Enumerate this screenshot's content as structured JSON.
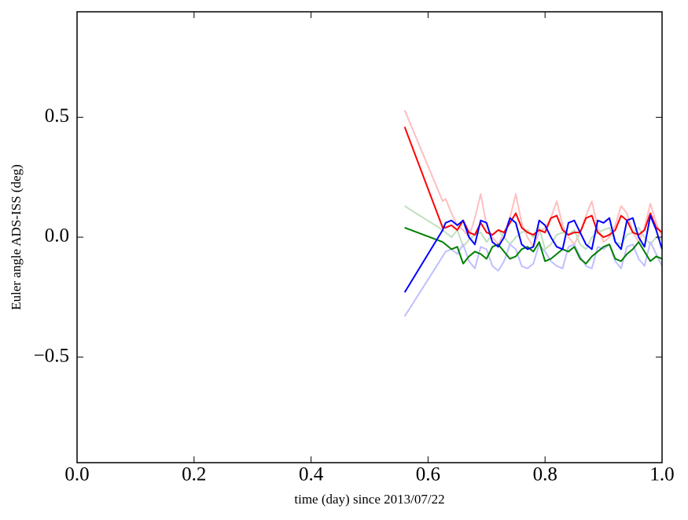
{
  "chart_data": {
    "type": "line",
    "xlabel": "time (day) since 2013/07/22",
    "ylabel": "Euler angle ADS-ISS (deg)",
    "xlim": [
      0,
      1
    ],
    "ylim": [
      -0.94,
      0.94
    ],
    "xticks": [
      {
        "value": 0,
        "label": "0.0"
      },
      {
        "value": 0.2,
        "label": "0.2"
      },
      {
        "value": 0.4,
        "label": "0.4"
      },
      {
        "value": 0.6,
        "label": "0.6"
      },
      {
        "value": 0.8,
        "label": "0.8"
      },
      {
        "value": 1,
        "label": "1.0"
      }
    ],
    "yticks": [
      {
        "value": -0.5,
        "label": "−0.5"
      },
      {
        "value": 0,
        "label": "0.0"
      },
      0.5
    ],
    "grid": false,
    "x": [
      0.56,
      0.625,
      0.63,
      0.64,
      0.65,
      0.66,
      0.67,
      0.68,
      0.69,
      0.7,
      0.71,
      0.72,
      0.73,
      0.74,
      0.75,
      0.76,
      0.77,
      0.78,
      0.79,
      0.8,
      0.81,
      0.82,
      0.83,
      0.84,
      0.85,
      0.86,
      0.87,
      0.88,
      0.89,
      0.9,
      0.91,
      0.92,
      0.93,
      0.94,
      0.95,
      0.96,
      0.97,
      0.98,
      0.99,
      1.0
    ],
    "series": [
      {
        "color": "#ffbfbf",
        "values": [
          0.53,
          0.15,
          0.16,
          0.1,
          0.05,
          0.03,
          0.0,
          0.08,
          0.18,
          0.05,
          0.0,
          -0.03,
          0.02,
          0.08,
          0.18,
          0.06,
          0.0,
          -0.04,
          0.02,
          0.04,
          0.08,
          0.15,
          0.05,
          0.0,
          -0.03,
          0.02,
          0.09,
          0.15,
          0.04,
          -0.02,
          0.0,
          0.05,
          0.13,
          0.1,
          0.02,
          -0.02,
          0.04,
          0.14,
          0.06,
          0.0
        ]
      },
      {
        "color": "#bfdfbf",
        "values": [
          0.13,
          0.03,
          0.02,
          0.0,
          0.03,
          -0.04,
          -0.01,
          0.01,
          0.02,
          -0.02,
          0.01,
          0.03,
          0.0,
          -0.03,
          0.0,
          0.02,
          0.03,
          0.0,
          0.04,
          -0.05,
          -0.03,
          0.01,
          0.02,
          0.01,
          0.03,
          -0.03,
          -0.05,
          0.0,
          0.02,
          0.03,
          0.04,
          -0.02,
          -0.03,
          0.01,
          0.02,
          0.04,
          0.0,
          -0.03,
          0.0,
          -0.01
        ]
      },
      {
        "color": "#bfbfff",
        "values": [
          -0.33,
          -0.08,
          -0.06,
          -0.05,
          -0.07,
          -0.03,
          -0.1,
          -0.13,
          -0.04,
          -0.05,
          -0.12,
          -0.14,
          -0.1,
          -0.03,
          -0.05,
          -0.12,
          -0.13,
          -0.11,
          -0.03,
          -0.06,
          -0.1,
          -0.12,
          -0.13,
          -0.04,
          -0.03,
          -0.08,
          -0.12,
          -0.13,
          -0.04,
          -0.05,
          -0.03,
          -0.1,
          -0.13,
          -0.04,
          -0.03,
          -0.09,
          -0.12,
          -0.02,
          -0.07,
          -0.12
        ]
      },
      {
        "color": "#ff0000",
        "values": [
          0.46,
          0.04,
          0.04,
          0.05,
          0.03,
          0.07,
          0.02,
          0.01,
          0.06,
          0.02,
          0.01,
          0.03,
          0.02,
          0.06,
          0.1,
          0.04,
          0.02,
          0.01,
          0.03,
          0.02,
          0.08,
          0.09,
          0.03,
          0.01,
          0.02,
          0.02,
          0.08,
          0.09,
          0.02,
          0.0,
          0.01,
          0.03,
          0.09,
          0.07,
          0.02,
          0.01,
          0.03,
          0.1,
          0.04,
          0.02
        ]
      },
      {
        "color": "#008000",
        "values": [
          0.04,
          -0.02,
          -0.03,
          -0.05,
          -0.04,
          -0.11,
          -0.08,
          -0.06,
          -0.07,
          -0.09,
          -0.04,
          -0.03,
          -0.06,
          -0.09,
          -0.08,
          -0.05,
          -0.04,
          -0.06,
          -0.02,
          -0.1,
          -0.09,
          -0.07,
          -0.05,
          -0.06,
          -0.04,
          -0.09,
          -0.11,
          -0.08,
          -0.06,
          -0.04,
          -0.03,
          -0.09,
          -0.1,
          -0.07,
          -0.05,
          -0.02,
          -0.06,
          -0.1,
          -0.08,
          -0.09
        ]
      },
      {
        "color": "#0000ff",
        "values": [
          -0.23,
          0.03,
          0.06,
          0.07,
          0.05,
          0.07,
          0.0,
          -0.03,
          0.07,
          0.06,
          -0.02,
          -0.04,
          0.0,
          0.08,
          0.06,
          -0.03,
          -0.05,
          -0.04,
          0.07,
          0.05,
          0.0,
          -0.04,
          -0.05,
          0.06,
          0.07,
          0.02,
          -0.03,
          -0.05,
          0.07,
          0.06,
          0.08,
          -0.02,
          -0.05,
          0.07,
          0.08,
          0.0,
          -0.04,
          0.09,
          0.03,
          -0.05
        ]
      }
    ]
  }
}
